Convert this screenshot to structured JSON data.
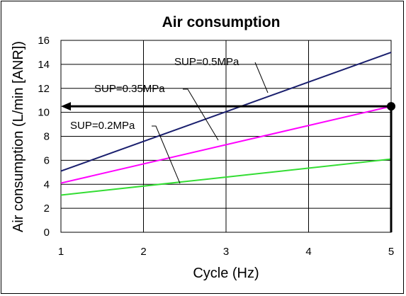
{
  "chart_data": {
    "type": "line",
    "title": "Air consumption",
    "xlabel": "Cycle (Hz)",
    "ylabel": "Air consumption (L/min [ANR])",
    "xlim": [
      1,
      5
    ],
    "ylim": [
      0,
      16
    ],
    "xticks": [
      1,
      2,
      3,
      4,
      5
    ],
    "yticks": [
      0,
      2,
      4,
      6,
      8,
      10,
      12,
      14,
      16
    ],
    "grid": true,
    "x": [
      1,
      5
    ],
    "series": [
      {
        "name": "SUP=0.5MPa",
        "values": [
          5.1,
          15.0
        ],
        "color": "#1a1f6e"
      },
      {
        "name": "SUP=0.35MPa",
        "values": [
          4.1,
          10.5
        ],
        "color": "#ff00ff"
      },
      {
        "name": "SUP=0.2MPa",
        "values": [
          3.1,
          6.1
        ],
        "color": "#33dd33"
      }
    ],
    "reference_point": {
      "x": 5,
      "y": 10.5
    }
  }
}
